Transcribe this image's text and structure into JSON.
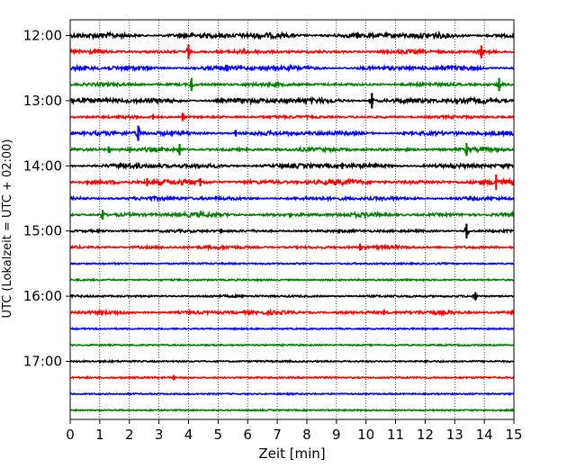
{
  "chart_data": {
    "type": "line",
    "subtype": "helicorder",
    "xlabel": "Zeit  [min]",
    "ylabel": "UTC (Lokalzeit = UTC + 02:00)",
    "xlim": [
      0,
      15
    ],
    "x_ticks": [
      "0",
      "1",
      "2",
      "3",
      "4",
      "5",
      "6",
      "7",
      "8",
      "9",
      "10",
      "11",
      "12",
      "13",
      "14",
      "15"
    ],
    "y_tick_labels": [
      "12:00",
      "13:00",
      "14:00",
      "15:00",
      "16:00",
      "17:00"
    ],
    "trace_interval_minutes": 15,
    "grid": "vertical dotted lines at each minute",
    "trace_colors": [
      "#000000",
      "#ff0000",
      "#0000ff",
      "#008000"
    ],
    "traces": [
      {
        "start": "12:00",
        "color": "#000000",
        "activity": 0.9,
        "events": [
          [
            9.7,
            0.35
          ]
        ]
      },
      {
        "start": "12:15",
        "color": "#ff0000",
        "activity": 0.5,
        "events": [
          [
            4.0,
            0.9
          ],
          [
            13.9,
            0.8
          ]
        ]
      },
      {
        "start": "12:30",
        "color": "#0000ff",
        "activity": 0.7,
        "events": [
          [
            0.5,
            0.3
          ],
          [
            5.3,
            0.4
          ]
        ]
      },
      {
        "start": "12:45",
        "color": "#008000",
        "activity": 0.4,
        "events": [
          [
            4.1,
            0.8
          ],
          [
            14.5,
            0.8
          ]
        ]
      },
      {
        "start": "13:00",
        "color": "#000000",
        "activity": 0.8,
        "events": [
          [
            10.2,
            0.95
          ]
        ]
      },
      {
        "start": "13:15",
        "color": "#ff0000",
        "activity": 0.3,
        "events": [
          [
            2.8,
            0.3
          ],
          [
            3.8,
            0.5
          ]
        ]
      },
      {
        "start": "13:30",
        "color": "#0000ff",
        "activity": 0.6,
        "events": [
          [
            2.3,
            0.95
          ],
          [
            5.6,
            0.4
          ]
        ]
      },
      {
        "start": "13:45",
        "color": "#008000",
        "activity": 0.5,
        "events": [
          [
            1.3,
            0.4
          ],
          [
            3.7,
            0.7
          ],
          [
            13.4,
            0.8
          ]
        ]
      },
      {
        "start": "14:00",
        "color": "#000000",
        "activity": 0.7,
        "events": [
          [
            9.2,
            0.4
          ]
        ]
      },
      {
        "start": "14:15",
        "color": "#ff0000",
        "activity": 0.8,
        "events": [
          [
            2.6,
            0.5
          ],
          [
            4.4,
            0.5
          ],
          [
            14.4,
            0.95
          ]
        ]
      },
      {
        "start": "14:30",
        "color": "#0000ff",
        "activity": 0.5,
        "events": []
      },
      {
        "start": "14:45",
        "color": "#008000",
        "activity": 0.6,
        "events": [
          [
            1.1,
            0.6
          ]
        ]
      },
      {
        "start": "15:00",
        "color": "#000000",
        "activity": 0.3,
        "events": [
          [
            5.1,
            0.3
          ],
          [
            13.4,
            0.9
          ]
        ]
      },
      {
        "start": "15:15",
        "color": "#ff0000",
        "activity": 0.4,
        "events": [
          [
            9.8,
            0.4
          ]
        ]
      },
      {
        "start": "15:30",
        "color": "#0000ff",
        "activity": 0.1,
        "events": []
      },
      {
        "start": "15:45",
        "color": "#008000",
        "activity": 0.1,
        "events": []
      },
      {
        "start": "16:00",
        "color": "#000000",
        "activity": 0.2,
        "events": [
          [
            13.7,
            0.5
          ]
        ]
      },
      {
        "start": "16:15",
        "color": "#ff0000",
        "activity": 0.5,
        "events": [
          [
            10.6,
            0.3
          ]
        ]
      },
      {
        "start": "16:30",
        "color": "#0000ff",
        "activity": 0.05,
        "events": []
      },
      {
        "start": "16:45",
        "color": "#008000",
        "activity": 0.05,
        "events": []
      },
      {
        "start": "17:00",
        "color": "#000000",
        "activity": 0.1,
        "events": []
      },
      {
        "start": "17:15",
        "color": "#ff0000",
        "activity": 0.1,
        "events": [
          [
            3.5,
            0.3
          ]
        ]
      },
      {
        "start": "17:30",
        "color": "#0000ff",
        "activity": 0.05,
        "events": []
      },
      {
        "start": "17:45",
        "color": "#008000",
        "activity": 0.05,
        "events": []
      }
    ]
  }
}
